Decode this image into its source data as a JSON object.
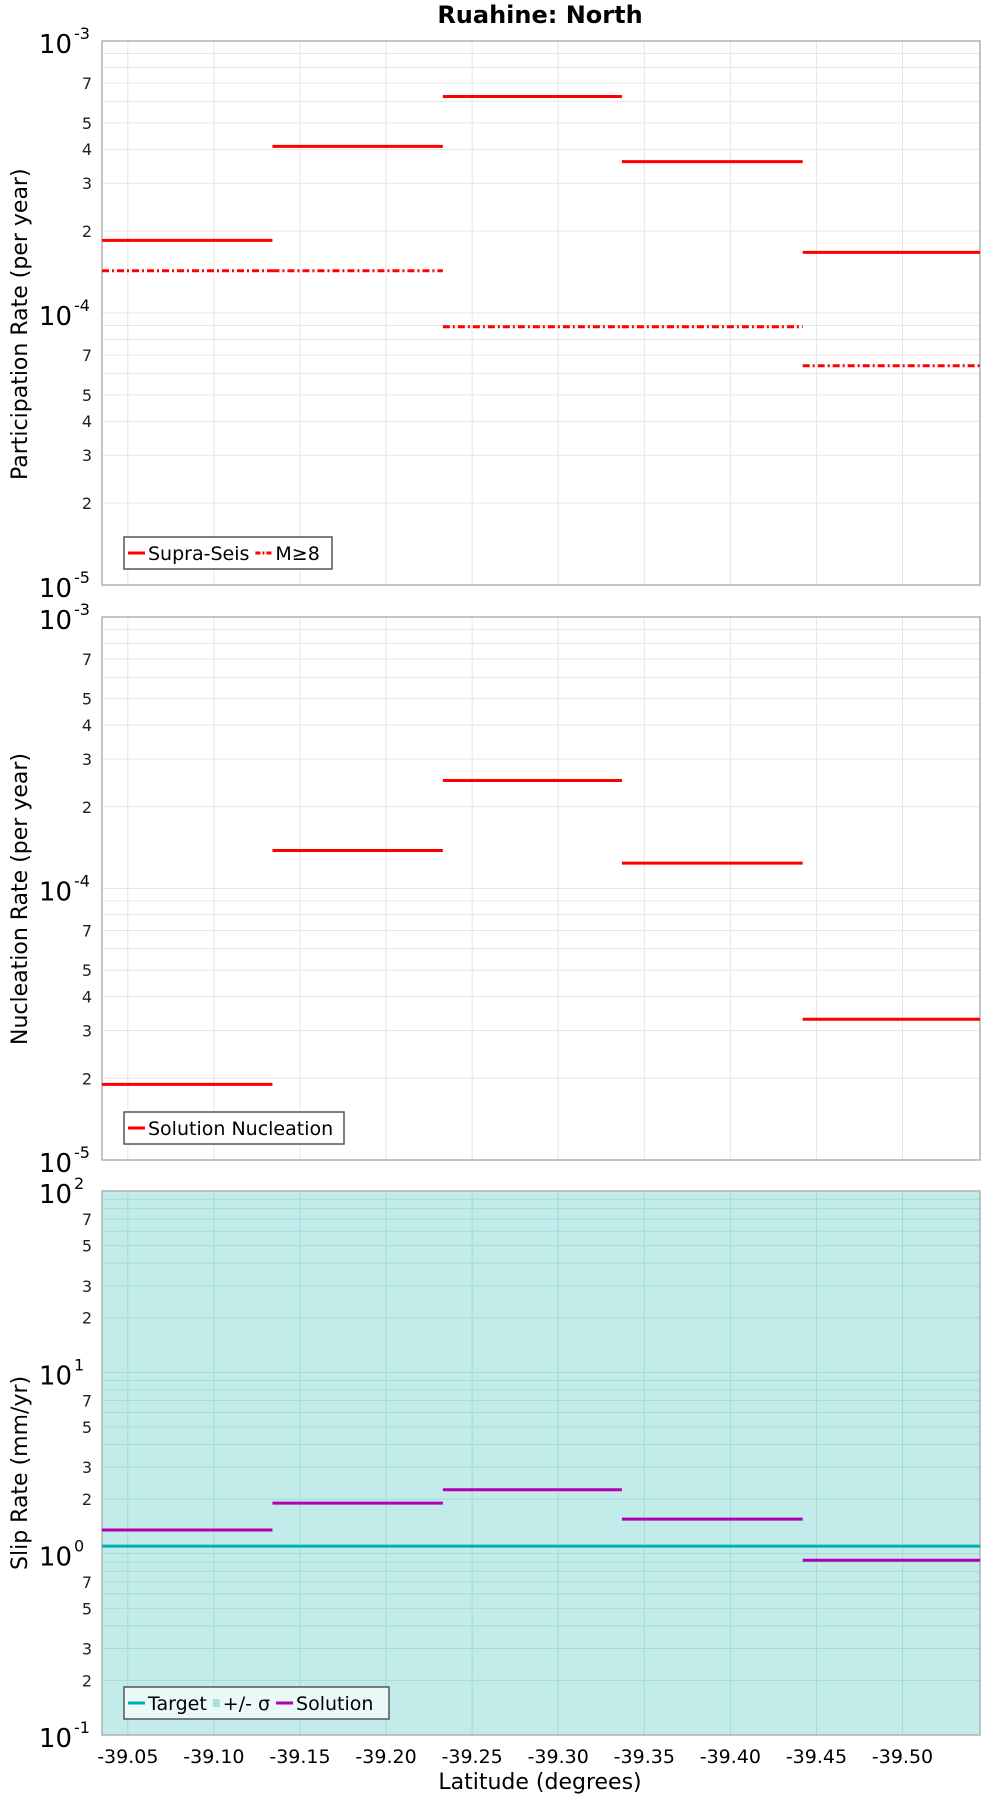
{
  "title": "Ruahine: North",
  "x_axis": {
    "label": "Latitude (degrees)",
    "ticks": [
      "-39.05",
      "-39.10",
      "-39.15",
      "-39.20",
      "-39.25",
      "-39.30",
      "-39.35",
      "-39.40",
      "-39.45",
      "-39.50"
    ]
  },
  "colors": {
    "red": "#ff0000",
    "target": "#00b0b0",
    "sigma": "#c2ecea",
    "solution": "#b000b0"
  },
  "chart_data": [
    {
      "type": "line",
      "title": "Ruahine: North",
      "xlabel": "Latitude (degrees)",
      "ylabel": "Participation Rate (per year)",
      "yscale": "log",
      "ylim": [
        1e-05,
        0.001
      ],
      "xlim": [
        -39.035,
        -39.545
      ],
      "grid": true,
      "legend_position": "lower-left",
      "bins": [
        [
          -39.035,
          -39.134
        ],
        [
          -39.134,
          -39.233
        ],
        [
          -39.233,
          -39.337
        ],
        [
          -39.337,
          -39.442
        ],
        [
          -39.442,
          -39.545
        ]
      ],
      "series": [
        {
          "name": "Supra-Seis",
          "style": "solid",
          "color": "#ff0000",
          "values": [
            0.000185,
            0.00041,
            0.000625,
            0.00036,
            0.000167
          ]
        },
        {
          "name": "M≥8",
          "style": "dash-dot",
          "color": "#ff0000",
          "values": [
            0.000143,
            0.000143,
            8.9e-05,
            8.9e-05,
            6.4e-05
          ]
        }
      ]
    },
    {
      "type": "line",
      "ylabel": "Nucleation Rate (per year)",
      "xlabel": "Latitude (degrees)",
      "yscale": "log",
      "ylim": [
        1e-05,
        0.001
      ],
      "grid": true,
      "legend_position": "lower-left",
      "bins": [
        [
          -39.035,
          -39.134
        ],
        [
          -39.134,
          -39.233
        ],
        [
          -39.233,
          -39.337
        ],
        [
          -39.337,
          -39.442
        ],
        [
          -39.442,
          -39.545
        ]
      ],
      "series": [
        {
          "name": "Solution Nucleation",
          "style": "solid",
          "color": "#ff0000",
          "values": [
            1.9e-05,
            0.000138,
            0.00025,
            0.000124,
            3.3e-05
          ]
        }
      ]
    },
    {
      "type": "line",
      "ylabel": "Slip Rate (mm/yr)",
      "xlabel": "Latitude (degrees)",
      "yscale": "log",
      "ylim": [
        0.1,
        100
      ],
      "grid": true,
      "legend_position": "lower-left",
      "bins": [
        [
          -39.035,
          -39.134
        ],
        [
          -39.134,
          -39.233
        ],
        [
          -39.233,
          -39.337
        ],
        [
          -39.337,
          -39.442
        ],
        [
          -39.442,
          -39.545
        ]
      ],
      "series": [
        {
          "name": "Target",
          "style": "solid",
          "color": "#00b0b0",
          "values": [
            1.1,
            1.1,
            1.1,
            1.1,
            1.1
          ]
        },
        {
          "name": "+/- σ",
          "style": "fill",
          "color": "#c2ecea",
          "range": [
            0.1,
            100
          ]
        },
        {
          "name": "Solution",
          "style": "solid",
          "color": "#b000b0",
          "values": [
            1.35,
            1.9,
            2.25,
            1.55,
            0.92
          ]
        }
      ]
    }
  ],
  "panels": [
    {
      "ylabel": "Participation Rate (per year)",
      "legend": [
        "Supra-Seis",
        "M≥8"
      ],
      "decade_top": "-3",
      "decade_mid": "-4",
      "decade_bot": "-5"
    },
    {
      "ylabel": "Nucleation Rate (per year)",
      "legend": [
        "Solution Nucleation"
      ],
      "decade_top": "-3",
      "decade_mid": "-4",
      "decade_bot": "-5"
    },
    {
      "ylabel": "Slip Rate (mm/yr)",
      "legend": [
        "Target",
        "+/- σ",
        "Solution"
      ],
      "decade_top": "2",
      "decade_mid": "1",
      "decade_mid2": "0",
      "decade_bot": "-1"
    }
  ]
}
